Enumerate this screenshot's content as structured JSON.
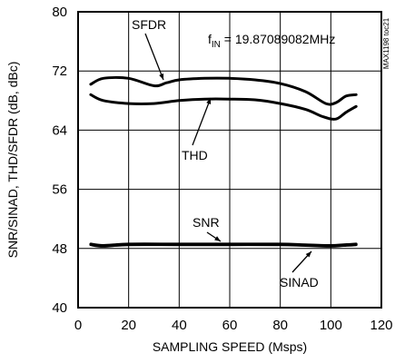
{
  "chart_data": {
    "type": "line",
    "xlabel": "SAMPLING SPEED (Msps)",
    "ylabel": "SNR/SINAD, THD/SFDR (dB, dBc)",
    "xlim": [
      0,
      120
    ],
    "ylim": [
      40,
      80
    ],
    "x_ticks": [
      0,
      20,
      40,
      60,
      80,
      100,
      120
    ],
    "y_ticks": [
      40,
      48,
      56,
      64,
      72,
      80
    ],
    "x_tick_labels": [
      "0",
      "20",
      "40",
      "60",
      "80",
      "100",
      "120"
    ],
    "y_tick_labels": [
      "40",
      "48",
      "56",
      "64",
      "72",
      "80"
    ],
    "grid": true,
    "annotation": {
      "f": "f",
      "sub": "IN",
      "rest": " = 19.87089082MHz"
    },
    "figure_id": "MAX1198 toc21",
    "series": [
      {
        "name": "SFDR",
        "x": [
          5,
          10,
          20,
          30,
          35,
          40,
          50,
          60,
          70,
          80,
          90,
          98,
          102,
          106,
          110
        ],
        "y": [
          70.2,
          71.0,
          71.0,
          70.0,
          70.4,
          70.8,
          71.0,
          71.0,
          70.8,
          70.3,
          69.2,
          67.6,
          67.7,
          68.6,
          68.8
        ]
      },
      {
        "name": "THD",
        "x": [
          5,
          10,
          20,
          30,
          40,
          50,
          60,
          70,
          80,
          90,
          97,
          102,
          106,
          110
        ],
        "y": [
          68.8,
          68.0,
          67.6,
          67.6,
          68.0,
          68.2,
          68.2,
          68.1,
          67.6,
          66.8,
          65.8,
          65.5,
          66.4,
          67.2
        ]
      },
      {
        "name": "SNR",
        "x": [
          5,
          10,
          20,
          40,
          60,
          80,
          90,
          100,
          105,
          110
        ],
        "y": [
          48.6,
          48.4,
          48.6,
          48.6,
          48.6,
          48.6,
          48.5,
          48.4,
          48.5,
          48.6
        ]
      },
      {
        "name": "SINAD",
        "x": [
          5,
          10,
          20,
          40,
          60,
          80,
          90,
          100,
          105,
          110
        ],
        "y": [
          48.5,
          48.3,
          48.5,
          48.5,
          48.5,
          48.5,
          48.4,
          48.3,
          48.4,
          48.5
        ]
      }
    ],
    "labels": [
      "SFDR",
      "THD",
      "SNR",
      "SINAD"
    ]
  }
}
